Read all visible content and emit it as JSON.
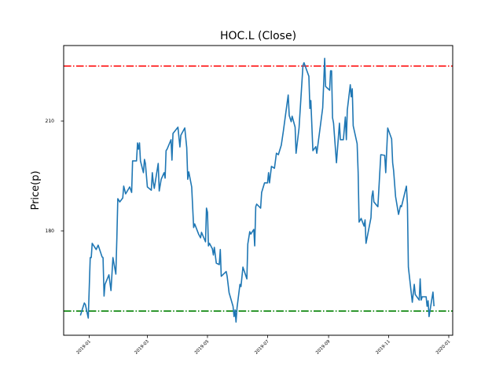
{
  "chart_data": {
    "type": "line",
    "title": "HOC.L (Close)",
    "xlabel": "",
    "ylabel": "Price(p)",
    "xlim": [
      "2018-12-06",
      "2020-01-05"
    ],
    "ylim": [
      151.5,
      230.6
    ],
    "grid": false,
    "xticks": [
      "2019-01",
      "2019-03",
      "2019-05",
      "2019-07",
      "2019-09",
      "2019-11",
      "2020-01"
    ],
    "yticks": [
      180,
      210
    ],
    "hlines": [
      {
        "value": 225.0,
        "color": "#ff0000",
        "style": "dashdot"
      },
      {
        "value": 158.1,
        "color": "#008000",
        "style": "dashdot"
      }
    ],
    "series": [
      {
        "name": "Close",
        "color": "#1f77b4",
        "dates": [
          "2018-12-23",
          "2018-12-27",
          "2018-12-28",
          "2018-12-31",
          "2019-01-02",
          "2019-01-03",
          "2019-01-04",
          "2019-01-08",
          "2019-01-10",
          "2019-01-14",
          "2019-01-15",
          "2019-01-16",
          "2019-01-17",
          "2019-01-21",
          "2019-01-23",
          "2019-01-25",
          "2019-01-28",
          "2019-01-29",
          "2019-01-30",
          "2019-02-01",
          "2019-02-04",
          "2019-02-05",
          "2019-02-07",
          "2019-02-11",
          "2019-02-13",
          "2019-02-14",
          "2019-02-18",
          "2019-02-19",
          "2019-02-20",
          "2019-02-21",
          "2019-02-22",
          "2019-02-25",
          "2019-02-26",
          "2019-02-27",
          "2019-03-01",
          "2019-03-05",
          "2019-03-06",
          "2019-03-07",
          "2019-03-08",
          "2019-03-12",
          "2019-03-13",
          "2019-03-15",
          "2019-03-18",
          "2019-03-19",
          "2019-03-20",
          "2019-03-21",
          "2019-03-25",
          "2019-03-26",
          "2019-03-27",
          "2019-04-01",
          "2019-04-03",
          "2019-04-04",
          "2019-04-08",
          "2019-04-10",
          "2019-04-11",
          "2019-04-12",
          "2019-04-15",
          "2019-04-17",
          "2019-04-18",
          "2019-04-22",
          "2019-04-24",
          "2019-04-25",
          "2019-04-29",
          "2019-04-30",
          "2019-05-01",
          "2019-05-02",
          "2019-05-03",
          "2019-05-06",
          "2019-05-07",
          "2019-05-08",
          "2019-05-10",
          "2019-05-13",
          "2019-05-14",
          "2019-05-15",
          "2019-05-20",
          "2019-05-21",
          "2019-05-23",
          "2019-05-27",
          "2019-05-28",
          "2019-05-29",
          "2019-05-30",
          "2019-05-31",
          "2019-06-03",
          "2019-06-04",
          "2019-06-06",
          "2019-06-10",
          "2019-06-11",
          "2019-06-13",
          "2019-06-14",
          "2019-06-17",
          "2019-06-18",
          "2019-06-19",
          "2019-06-20",
          "2019-06-24",
          "2019-06-25",
          "2019-06-28",
          "2019-07-01",
          "2019-07-02",
          "2019-07-03",
          "2019-07-05",
          "2019-07-08",
          "2019-07-10",
          "2019-07-12",
          "2019-07-15",
          "2019-07-17",
          "2019-07-22",
          "2019-07-23",
          "2019-07-25",
          "2019-07-26",
          "2019-07-29",
          "2019-07-30",
          "2019-08-02",
          "2019-08-06",
          "2019-08-07",
          "2019-08-12",
          "2019-08-13",
          "2019-08-14",
          "2019-08-16",
          "2019-08-19",
          "2019-08-20",
          "2019-08-26",
          "2019-08-28",
          "2019-08-29",
          "2019-09-02",
          "2019-09-03",
          "2019-09-04",
          "2019-09-05",
          "2019-09-06",
          "2019-09-09",
          "2019-09-12",
          "2019-09-13",
          "2019-09-16",
          "2019-09-18",
          "2019-09-19",
          "2019-09-20",
          "2019-09-23",
          "2019-09-24",
          "2019-09-25",
          "2019-09-26",
          "2019-09-30",
          "2019-10-01",
          "2019-10-02",
          "2019-10-04",
          "2019-10-07",
          "2019-10-08",
          "2019-10-09",
          "2019-10-14",
          "2019-10-15",
          "2019-10-16",
          "2019-10-17",
          "2019-10-21",
          "2019-10-24",
          "2019-10-28",
          "2019-10-29",
          "2019-10-31",
          "2019-11-04",
          "2019-11-05",
          "2019-11-06",
          "2019-11-08",
          "2019-11-11",
          "2019-11-13",
          "2019-11-14",
          "2019-11-19",
          "2019-11-20",
          "2019-11-21",
          "2019-11-25",
          "2019-11-27",
          "2019-11-28",
          "2019-12-02",
          "2019-12-03",
          "2019-12-04",
          "2019-12-05",
          "2019-12-09",
          "2019-12-10",
          "2019-12-11",
          "2019-12-12",
          "2019-12-16",
          "2019-12-17"
        ],
        "values": [
          156.9,
          160.3,
          159.9,
          156.2,
          172.7,
          172.7,
          176.6,
          174.9,
          176.1,
          172.9,
          172.7,
          162.2,
          165.4,
          168.0,
          163.7,
          172.7,
          168.2,
          178.1,
          188.8,
          187.9,
          189.0,
          192.2,
          190.1,
          192.0,
          190.5,
          199.1,
          199.1,
          204.0,
          202.3,
          204.0,
          199.1,
          195.9,
          199.5,
          198.4,
          192.0,
          191.1,
          195.9,
          193.3,
          191.6,
          198.4,
          190.9,
          194.1,
          195.9,
          194.4,
          201.9,
          202.3,
          204.9,
          199.3,
          206.6,
          208.3,
          202.9,
          206.1,
          208.1,
          202.7,
          194.1,
          196.1,
          192.0,
          180.9,
          181.9,
          179.1,
          178.1,
          179.6,
          177.0,
          186.2,
          185.1,
          175.9,
          176.6,
          175.1,
          173.4,
          175.5,
          171.2,
          170.8,
          174.9,
          167.6,
          168.9,
          167.6,
          163.1,
          159.4,
          156.6,
          158.4,
          155.1,
          159.0,
          165.4,
          164.8,
          170.1,
          166.9,
          176.4,
          179.8,
          179.1,
          180.4,
          175.9,
          186.6,
          187.3,
          186.2,
          190.5,
          193.1,
          193.1,
          195.9,
          193.1,
          197.6,
          197.1,
          201.2,
          200.8,
          203.4,
          207.2,
          217.1,
          211.5,
          209.8,
          211.3,
          208.3,
          201.2,
          208.1,
          225.2,
          225.9,
          222.2,
          213.4,
          215.6,
          201.9,
          203.0,
          201.2,
          213.6,
          227.1,
          219.4,
          218.4,
          223.7,
          223.7,
          210.9,
          209.4,
          198.6,
          209.4,
          204.9,
          204.9,
          211.1,
          204.9,
          213.0,
          219.9,
          216.6,
          218.8,
          208.7,
          203.8,
          195.9,
          182.4,
          183.4,
          181.3,
          183.0,
          176.6,
          183.6,
          189.4,
          190.9,
          187.9,
          186.6,
          200.8,
          200.6,
          195.9,
          208.1,
          205.1,
          198.6,
          196.5,
          189.4,
          184.5,
          186.9,
          186.6,
          192.2,
          187.3,
          170.1,
          160.5,
          165.4,
          162.6,
          161.1,
          166.9,
          161.1,
          162.0,
          162.0,
          159.4,
          160.9,
          156.6,
          163.3,
          159.4
        ]
      }
    ]
  }
}
